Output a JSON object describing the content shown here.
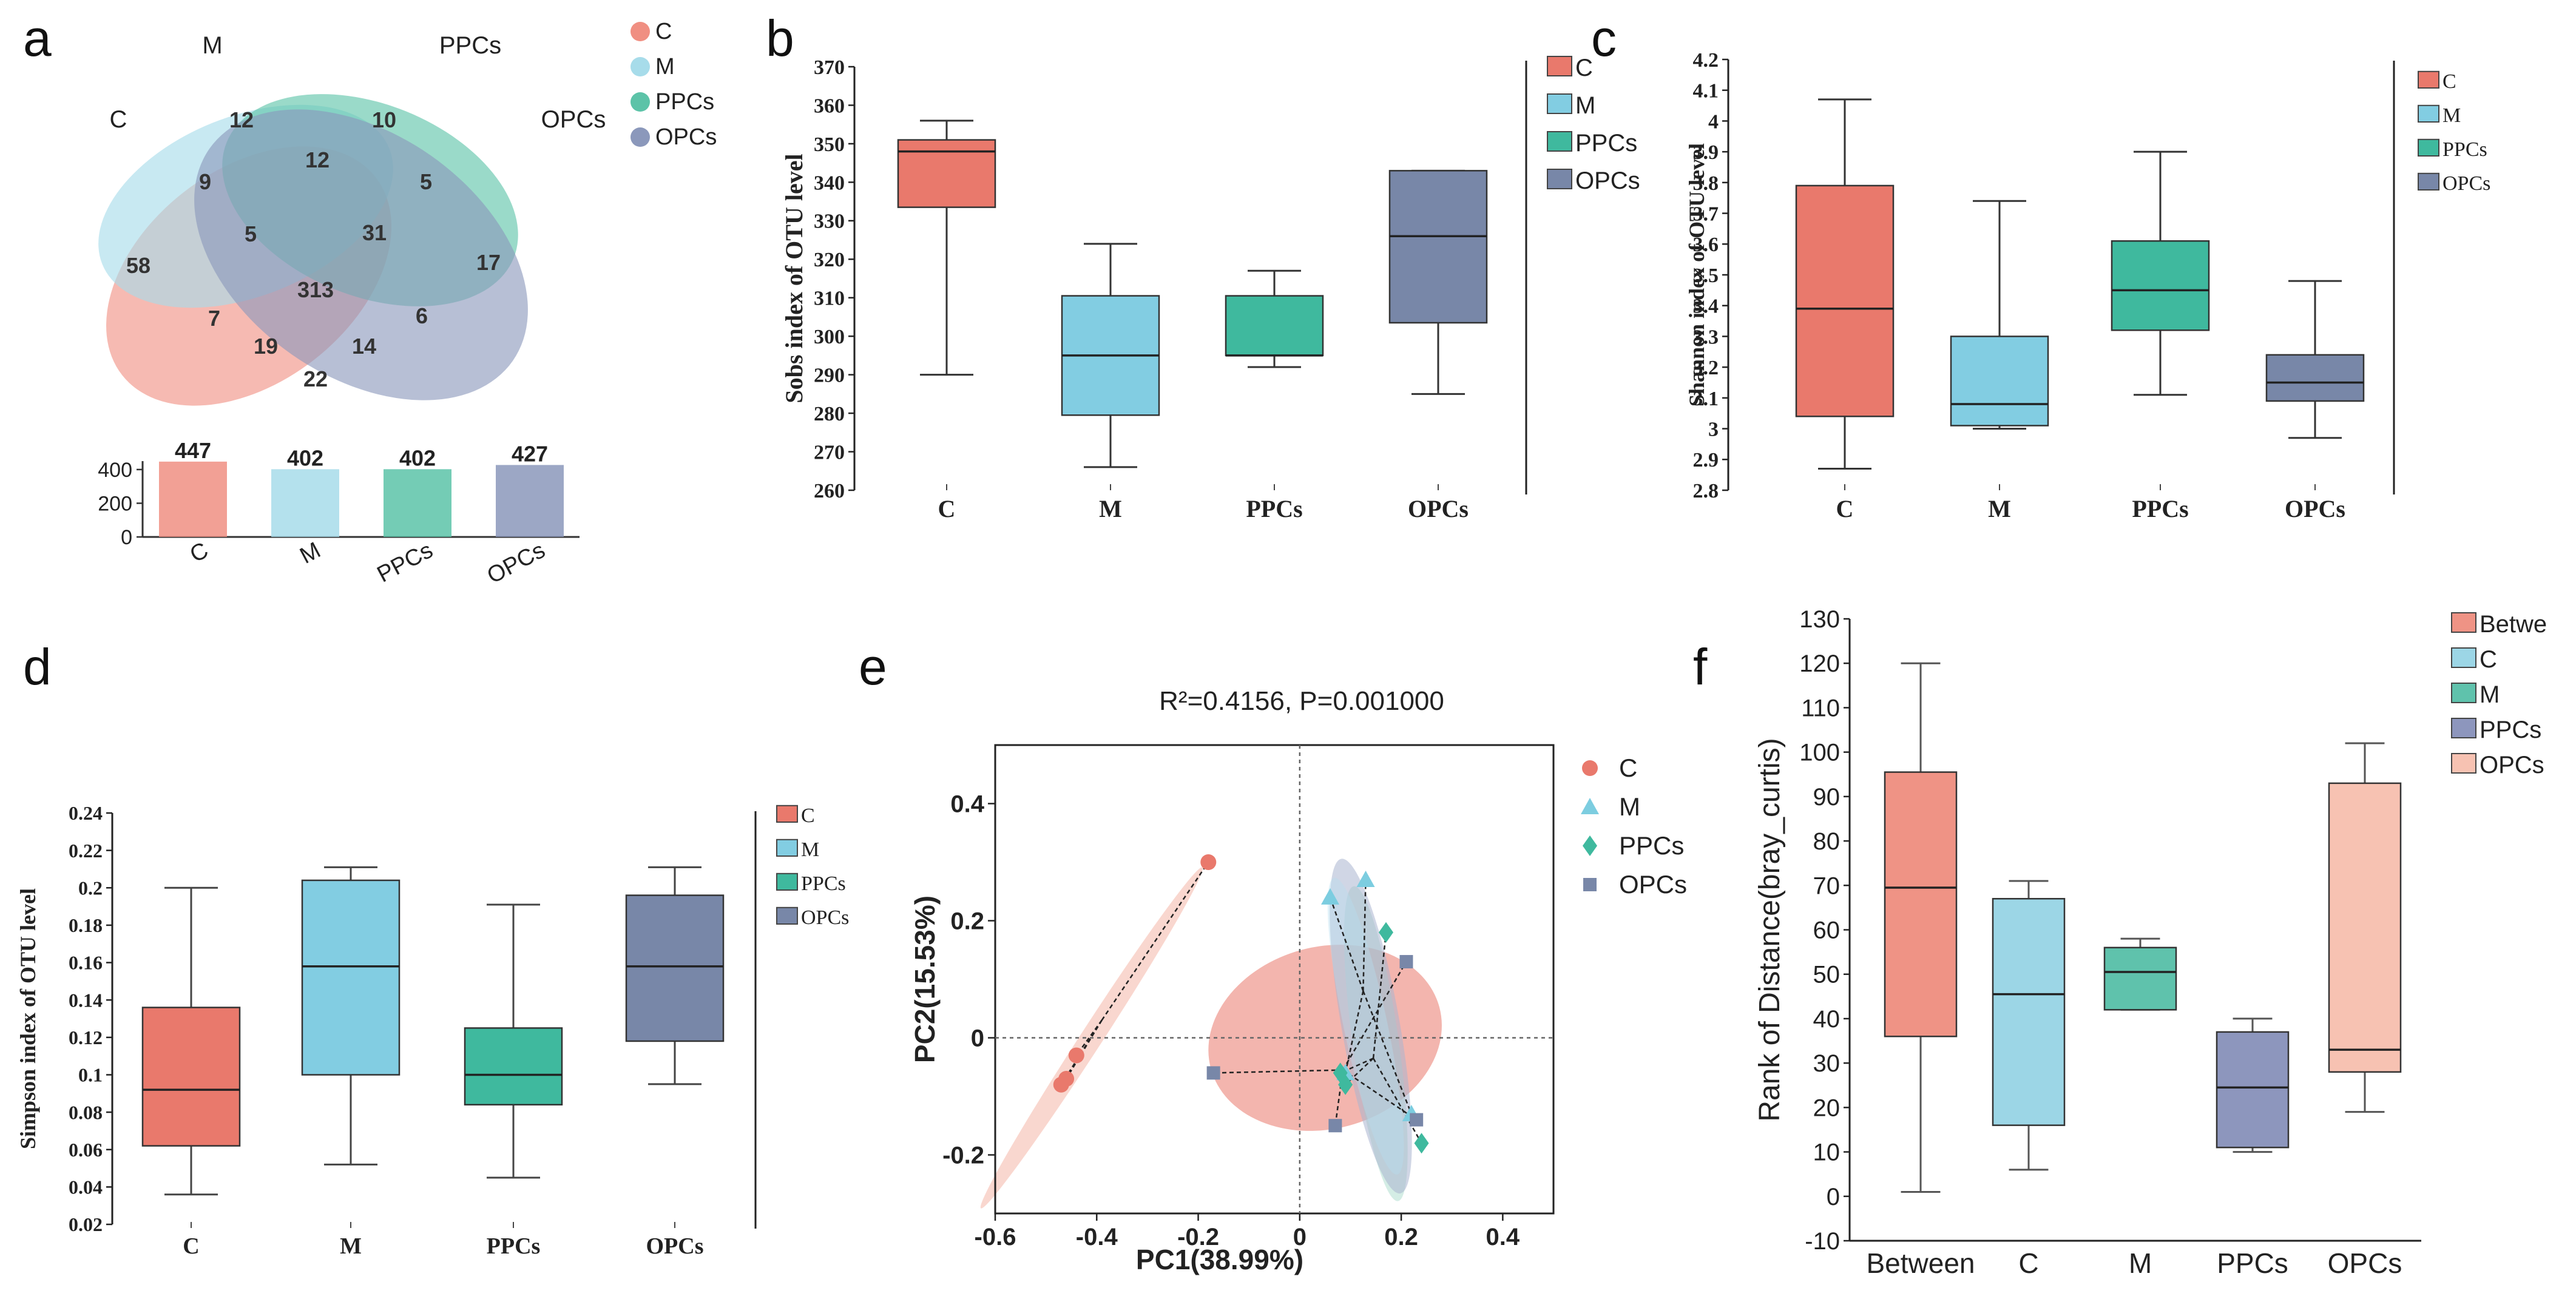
{
  "colors": {
    "C": "#e9796c",
    "M": "#82cde2",
    "PPCs": "#3fb99e",
    "OPCs": "#7887a8",
    "Between": "#ef9385",
    "venn_C": "#f08f82",
    "venn_M": "#a7dcea",
    "venn_PPCs": "#5cc3a8",
    "venn_OPCs": "#8b98bb",
    "f_C": "#9cd6e6",
    "f_M": "#5fc2ac",
    "f_PPCs": "#8d96bd",
    "f_OPCs": "#f7c2b2",
    "f_Between": "#ef9385"
  },
  "panel_letters": [
    "a",
    "b",
    "c",
    "d",
    "e",
    "f"
  ],
  "chart_data": [
    {
      "panel": "a",
      "type": "venn",
      "sets": [
        "C",
        "M",
        "PPCs",
        "OPCs"
      ],
      "legend": [
        "C",
        "M",
        "PPCs",
        "OPCs"
      ],
      "region_counts": [
        {
          "label": "C only",
          "value": "58"
        },
        {
          "label": "M only",
          "value": "12"
        },
        {
          "label": "PPCs only",
          "value": "10"
        },
        {
          "label": "OPCs only",
          "value": "17"
        },
        {
          "label": "C∩M",
          "value": "9"
        },
        {
          "label": "M∩PPCs",
          "value": "12"
        },
        {
          "label": "PPCs∩OPCs",
          "value": "5"
        },
        {
          "label": "C∩M∩PPCs",
          "value": "5"
        },
        {
          "label": "M∩PPCs∩OPCs",
          "value": "31"
        },
        {
          "label": "all four",
          "value": "313"
        },
        {
          "label": "C∩PPCs",
          "value": "7"
        },
        {
          "label": "M∩OPCs",
          "value": "6"
        },
        {
          "label": "C∩PPCs∩OPCs",
          "value": "19"
        },
        {
          "label": "C∩M∩OPCs",
          "value": "14"
        },
        {
          "label": "C∩OPCs",
          "value": "22"
        }
      ],
      "bar": {
        "categories": [
          "C",
          "M",
          "PPCs",
          "OPCs"
        ],
        "values": [
          447,
          402,
          402,
          427
        ],
        "labels": [
          "447",
          "402",
          "402",
          "427"
        ],
        "ylim": [
          0,
          450
        ],
        "yticks": [
          "0",
          "200",
          "400"
        ]
      }
    },
    {
      "panel": "b",
      "type": "box",
      "ylabel": "Sobs index of OTU level",
      "categories": [
        "C",
        "M",
        "PPCs",
        "OPCs"
      ],
      "ylim": [
        260,
        370
      ],
      "yticks": [
        "260",
        "270",
        "280",
        "290",
        "300",
        "310",
        "320",
        "330",
        "340",
        "350",
        "360",
        "370"
      ],
      "boxes": [
        {
          "name": "C",
          "min": 290,
          "q1": 333.5,
          "median": 348,
          "q3": 351,
          "max": 356
        },
        {
          "name": "M",
          "min": 266,
          "q1": 279.5,
          "median": 295,
          "q3": 310.5,
          "max": 324
        },
        {
          "name": "PPCs",
          "min": 292,
          "q1": 295,
          "median": 295,
          "q3": 310.5,
          "max": 317
        },
        {
          "name": "OPCs",
          "min": 285,
          "q1": 303.5,
          "median": 326,
          "q3": 343,
          "max": 343
        }
      ],
      "legend": [
        "C",
        "M",
        "PPCs",
        "OPCs"
      ]
    },
    {
      "panel": "c",
      "type": "box",
      "ylabel": "Shannon index of OTU level",
      "categories": [
        "C",
        "M",
        "PPCs",
        "OPCs"
      ],
      "ylim": [
        2.8,
        4.2
      ],
      "yticks": [
        "2.8",
        "2.9",
        "3",
        "3.1",
        "3.2",
        "3.3",
        "3.4",
        "3.5",
        "3.6",
        "3.7",
        "3.8",
        "3.9",
        "4",
        "4.1",
        "4.2"
      ],
      "boxes": [
        {
          "name": "C",
          "min": 2.87,
          "q1": 3.04,
          "median": 3.39,
          "q3": 3.79,
          "max": 4.07
        },
        {
          "name": "M",
          "min": 3.0,
          "q1": 3.01,
          "median": 3.08,
          "q3": 3.3,
          "max": 3.74
        },
        {
          "name": "PPCs",
          "min": 3.11,
          "q1": 3.32,
          "median": 3.45,
          "q3": 3.61,
          "max": 3.9
        },
        {
          "name": "OPCs",
          "min": 2.97,
          "q1": 3.09,
          "median": 3.15,
          "q3": 3.24,
          "max": 3.48
        }
      ],
      "legend": [
        "C",
        "M",
        "PPCs",
        "OPCs"
      ]
    },
    {
      "panel": "d",
      "type": "box",
      "ylabel": "Simpson index of OTU level",
      "categories": [
        "C",
        "M",
        "PPCs",
        "OPCs"
      ],
      "ylim": [
        0.02,
        0.24
      ],
      "yticks": [
        "0.02",
        "0.04",
        "0.06",
        "0.08",
        "0.1",
        "0.12",
        "0.14",
        "0.16",
        "0.18",
        "0.2",
        "0.22",
        "0.24"
      ],
      "boxes": [
        {
          "name": "C",
          "min": 0.036,
          "q1": 0.062,
          "median": 0.092,
          "q3": 0.136,
          "max": 0.2
        },
        {
          "name": "M",
          "min": 0.052,
          "q1": 0.1,
          "median": 0.158,
          "q3": 0.204,
          "max": 0.211
        },
        {
          "name": "PPCs",
          "min": 0.045,
          "q1": 0.084,
          "median": 0.1,
          "q3": 0.125,
          "max": 0.191
        },
        {
          "name": "OPCs",
          "min": 0.095,
          "q1": 0.118,
          "median": 0.158,
          "q3": 0.196,
          "max": 0.211
        }
      ],
      "legend": [
        "C",
        "M",
        "PPCs",
        "OPCs"
      ]
    },
    {
      "panel": "e",
      "type": "scatter",
      "title": "R²=0.4156, P=0.001000",
      "xlabel": "PC1(38.99%)",
      "ylabel": "PC2(15.53%)",
      "xlim": [
        -0.6,
        0.5
      ],
      "ylim": [
        -0.3,
        0.5
      ],
      "xticks": [
        "-0.6",
        "-0.4",
        "-0.2",
        "0",
        "0.2",
        "0.4"
      ],
      "yticks": [
        "-0.2",
        "0",
        "0.2",
        "0.4"
      ],
      "legend": [
        "C",
        "M",
        "PPCs",
        "OPCs"
      ],
      "series": [
        {
          "name": "C",
          "marker": "circle",
          "points": [
            [
              -0.18,
              0.3
            ],
            [
              -0.44,
              -0.03
            ],
            [
              -0.46,
              -0.07
            ],
            [
              -0.47,
              -0.08
            ]
          ]
        },
        {
          "name": "M",
          "marker": "triangle",
          "points": [
            [
              0.06,
              0.24
            ],
            [
              0.13,
              0.27
            ],
            [
              0.22,
              -0.13
            ],
            [
              0.09,
              -0.06
            ]
          ]
        },
        {
          "name": "PPCs",
          "marker": "diamond",
          "points": [
            [
              0.17,
              0.18
            ],
            [
              0.09,
              -0.08
            ],
            [
              0.24,
              -0.18
            ],
            [
              0.08,
              -0.06
            ]
          ]
        },
        {
          "name": "OPCs",
          "marker": "square",
          "points": [
            [
              -0.17,
              -0.06
            ],
            [
              0.21,
              0.13
            ],
            [
              0.07,
              -0.15
            ],
            [
              0.23,
              -0.14
            ]
          ]
        }
      ],
      "centroids": {
        "C": [
          -0.39,
          0.03
        ],
        "M": [
          0.125,
          0.08
        ],
        "PPCs": [
          0.145,
          -0.035
        ],
        "OPCs": [
          0.085,
          -0.055
        ]
      }
    },
    {
      "panel": "f",
      "type": "box",
      "ylabel": "Rank of Distance(bray_curtis)",
      "categories": [
        "Between",
        "C",
        "M",
        "PPCs",
        "OPCs"
      ],
      "ylim": [
        -10,
        130
      ],
      "yticks": [
        "-10",
        "0",
        "10",
        "20",
        "30",
        "40",
        "50",
        "60",
        "70",
        "80",
        "90",
        "100",
        "110",
        "120",
        "130"
      ],
      "boxes": [
        {
          "name": "Between",
          "min": 1,
          "q1": 36,
          "median": 69.5,
          "q3": 95.5,
          "max": 120
        },
        {
          "name": "C",
          "min": 6,
          "q1": 16,
          "median": 45.5,
          "q3": 67,
          "max": 71
        },
        {
          "name": "M",
          "min": 42,
          "q1": 42,
          "median": 50.5,
          "q3": 56,
          "max": 58
        },
        {
          "name": "PPCs",
          "min": 10,
          "q1": 11,
          "median": 24.5,
          "q3": 37,
          "max": 40
        },
        {
          "name": "OPCs",
          "min": 19,
          "q1": 28,
          "median": 33,
          "q3": 93,
          "max": 102
        }
      ],
      "legend": [
        "Betwe",
        "C",
        "M",
        "PPCs",
        "OPCs"
      ]
    }
  ]
}
